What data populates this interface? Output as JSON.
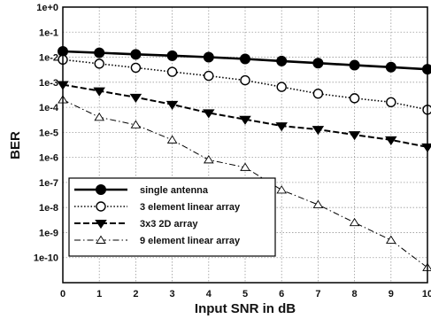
{
  "chart_data": {
    "type": "line",
    "title": "",
    "xlabel": "Input SNR in dB",
    "ylabel": "BER",
    "x": [
      0,
      1,
      2,
      3,
      4,
      5,
      6,
      7,
      8,
      9,
      10
    ],
    "xlim": [
      0,
      10
    ],
    "ylim": [
      1e-10,
      10
    ],
    "yscale": "log",
    "grid": true,
    "legend_position": "bottom-left",
    "x_tick_labels": [
      "0",
      "1",
      "2",
      "3",
      "4",
      "5",
      "6",
      "7",
      "8",
      "9",
      "10"
    ],
    "y_tick_labels": [
      "1e+0",
      "1e-1",
      "1e-2",
      "1e-3",
      "1e-4",
      "1e-5",
      "1e-6",
      "1e-7",
      "1e-8",
      "1e-9",
      "1e-10"
    ],
    "series": [
      {
        "name": "single antenna",
        "marker": "filled-circle",
        "line_style": "solid",
        "values": [
          0.17,
          0.15,
          0.13,
          0.115,
          0.1,
          0.085,
          0.07,
          0.058,
          0.048,
          0.04,
          0.033
        ]
      },
      {
        "name": "3 element linear array",
        "marker": "open-circle",
        "line_style": "dotted",
        "values": [
          0.08,
          0.055,
          0.038,
          0.026,
          0.018,
          0.012,
          0.0065,
          0.0035,
          0.0023,
          0.0016,
          0.0008
        ]
      },
      {
        "name": "3x3  2D array",
        "marker": "filled-triangle-down",
        "line_style": "dashed",
        "values": [
          0.008,
          0.0045,
          0.0025,
          0.0013,
          0.0006,
          0.00033,
          0.00018,
          0.00013,
          8e-05,
          5e-05,
          2.6e-05
        ]
      },
      {
        "name": "9 element linear array",
        "marker": "open-triangle-up",
        "line_style": "dash-dot",
        "values": [
          0.002,
          0.0004,
          0.0002,
          5e-05,
          8e-06,
          4e-06,
          5e-07,
          1.3e-07,
          2.5e-08,
          5e-09,
          4e-10
        ]
      }
    ]
  }
}
